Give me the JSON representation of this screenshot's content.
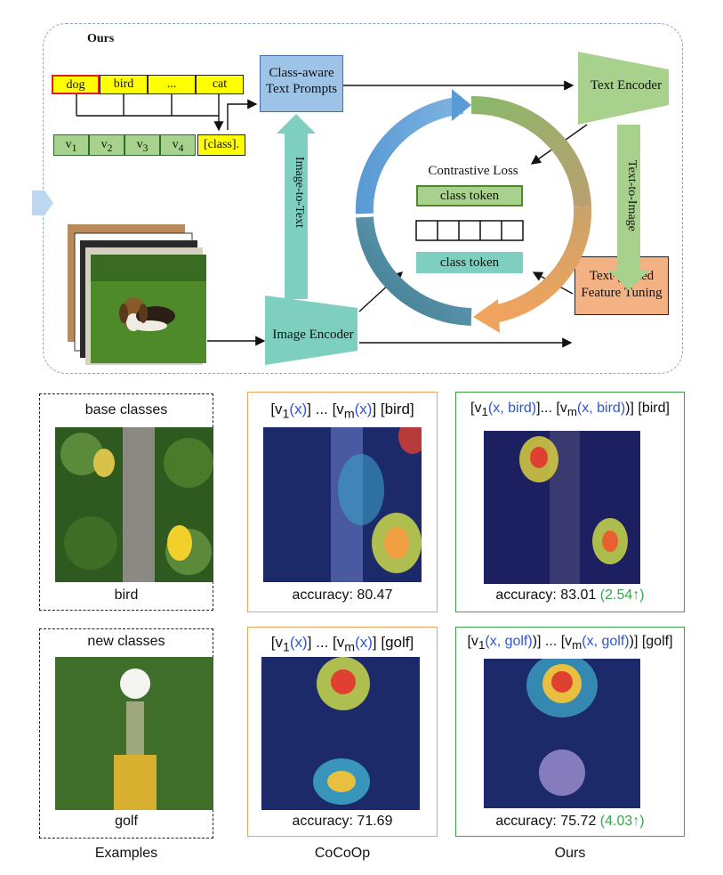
{
  "top": {
    "title": "Ours",
    "classes": [
      "dog",
      "bird",
      "...",
      "cat"
    ],
    "vectors": [
      "v",
      "v",
      "v",
      "v"
    ],
    "vector_subs": [
      "1",
      "2",
      "3",
      "4"
    ],
    "class_slot": "[class].",
    "class_aware_line1": "Class-aware",
    "class_aware_line2": "Text Prompts",
    "text_encoder": "Text Encoder",
    "image_encoder": "Image Encoder",
    "feature_line1": "Text-guided",
    "feature_line2": "Feature Tuning",
    "image_to_text": "Image-to-Text",
    "text_to_image": "Text-to-Image",
    "contrastive_loss": "Contrastive Loss",
    "class_token_1": "class token",
    "class_token_2": "class token"
  },
  "row1": {
    "examples_title": "base classes",
    "examples_caption": "bird",
    "cocoop_prompt": {
      "p1": "[v",
      "s1": "1",
      "x1": "(x)",
      "mid": "] ... [v",
      "s2": "m",
      "x2": "(x)",
      "end": "] [bird]"
    },
    "cocoop_accuracy": "accuracy: 80.47",
    "ours_prompt": {
      "p1": "[v",
      "s1": "1",
      "x1": "(x, bird)",
      "mid": "]... [v",
      "s2": "m",
      "x2": "(x, bird)",
      "end": ")] [bird]"
    },
    "ours_accuracy": "accuracy: 83.01",
    "ours_gain": "(2.54↑)"
  },
  "row2": {
    "examples_title": "new classes",
    "examples_caption": "golf",
    "cocoop_prompt": {
      "p1": "[v",
      "s1": "1",
      "x1": "(x)",
      "mid": "] ... [v",
      "s2": "m",
      "x2": "(x)",
      "end": "] [golf]"
    },
    "cocoop_accuracy": "accuracy: 71.69",
    "ours_prompt": {
      "p1": "[v",
      "s1": "1",
      "x1": "(x, golf)",
      "mid": ")] ... [v",
      "s2": "m",
      "x2": "(x, golf)",
      "end": ")] [golf]"
    },
    "ours_accuracy": "accuracy: 75.72",
    "ours_gain": "(4.03↑)"
  },
  "columns": {
    "examples": "Examples",
    "cocoop": "CoCoOp",
    "ours": "Ours"
  },
  "colors": {
    "class_yellow": "#ffff00",
    "vector_green": "#a9d18e",
    "prompt_blue": "#9dc3e6",
    "encoder_green": "#a9d18e",
    "encoder_teal": "#7fcfc0",
    "feature_orange": "#f4b183",
    "cocoop_border": "#f0a35e",
    "ours_border": "#3aa64a",
    "dashed_border": "#8aa7c9"
  }
}
